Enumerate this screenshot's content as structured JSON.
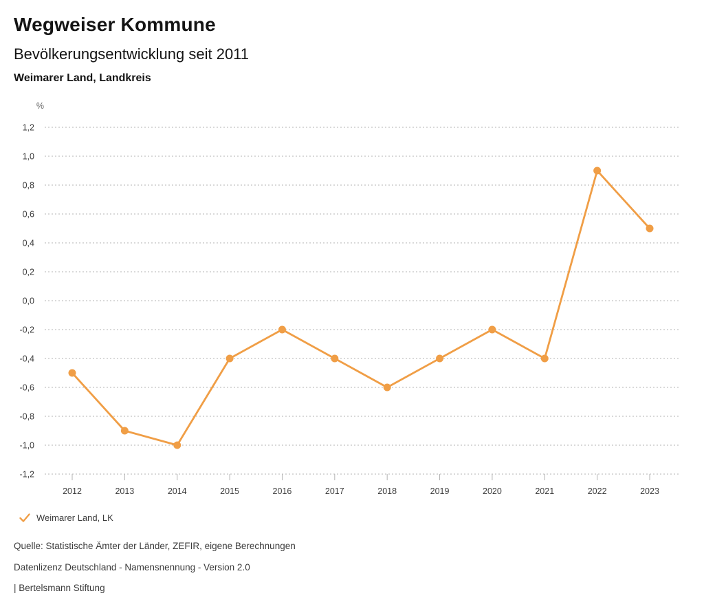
{
  "header": {
    "title": "Wegweiser Kommune",
    "subtitle": "Bevölkerungsentwicklung seit 2011",
    "region": "Weimarer Land, Landkreis"
  },
  "chart_data": {
    "type": "line",
    "title": "Bevölkerungsentwicklung seit 2011",
    "subtitle_region": "Weimarer Land, Landkreis",
    "unit_label": "%",
    "x": [
      2012,
      2013,
      2014,
      2015,
      2016,
      2017,
      2018,
      2019,
      2020,
      2021,
      2022,
      2023
    ],
    "series": [
      {
        "name": "Weimarer Land, LK",
        "values": [
          -0.5,
          -0.9,
          -1.0,
          -0.4,
          -0.2,
          -0.4,
          -0.6,
          -0.4,
          -0.2,
          -0.4,
          0.9,
          0.5
        ],
        "color": "#f09e46"
      }
    ],
    "ylim": [
      -1.2,
      1.2
    ],
    "ytick_step": 0.2,
    "ytick_labels": [
      "1,2",
      "1,0",
      "0,8",
      "0,6",
      "0,4",
      "0,2",
      "0,0",
      "-0,2",
      "-0,4",
      "-0,6",
      "-0,8",
      "-1,0",
      "-1,2"
    ],
    "grid": "horizontal dotted",
    "legend_position": "bottom-left"
  },
  "legend": {
    "check_icon": "check",
    "label": "Weimarer Land, LK"
  },
  "footer": {
    "source": "Quelle: Statistische Ämter der Länder, ZEFIR, eigene Berechnungen",
    "license": "Datenlizenz Deutschland - Namensnennung - Version 2.0",
    "attribution": "| Bertelsmann Stiftung"
  },
  "colors": {
    "accent": "#f09e46",
    "grid": "#b3b3b3",
    "tick_text": "#3c3c3c",
    "unit_text": "#666666",
    "text": "#3b3b3b"
  }
}
